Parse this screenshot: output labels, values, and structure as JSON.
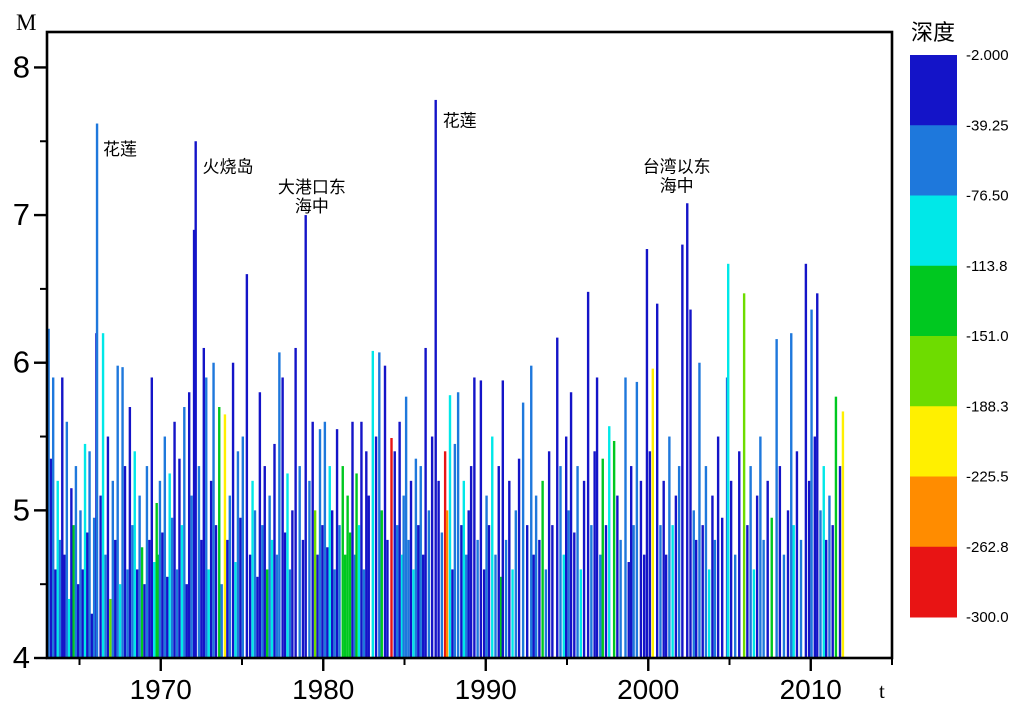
{
  "chart_data": {
    "type": "bar",
    "title": "",
    "xlabel": "t",
    "ylabel": "M",
    "xlim": [
      1963,
      2015
    ],
    "ylim": [
      4,
      8.24
    ],
    "x_major_ticks": [
      1970,
      1980,
      1990,
      2000,
      2010
    ],
    "x_minor_ticks": [
      1965,
      1975,
      1985,
      1995,
      2005,
      2015
    ],
    "y_major_ticks": [
      4,
      5,
      6,
      7,
      8
    ],
    "y_minor_ticks": [
      4.5,
      5.5,
      6.5,
      7.5
    ],
    "grid": false,
    "legend_position": "right",
    "depth_scale": {
      "title": "深度",
      "boundary_labels": [
        "-2.000",
        "-39.25",
        "-76.50",
        "-113.8",
        "-151.0",
        "-188.3",
        "-225.5",
        "-262.8",
        "-300.0"
      ],
      "band_colors": [
        "#1414C8",
        "#1E78DC",
        "#00E8E8",
        "#00C820",
        "#6EDC00",
        "#FFF000",
        "#FF8C00",
        "#E81414"
      ]
    },
    "annotations": [
      {
        "lines": [
          "花莲"
        ],
        "year": 1966.08,
        "mag": 7.51,
        "align": "left"
      },
      {
        "lines": [
          "火烧岛"
        ],
        "year": 1972.2,
        "mag": 7.39,
        "align": "left"
      },
      {
        "lines": [
          "大港口东",
          "海中"
        ],
        "year": 1979.3,
        "mag": 7.25,
        "align": "center"
      },
      {
        "lines": [
          "花莲"
        ],
        "year": 1986.98,
        "mag": 7.7,
        "align": "left"
      },
      {
        "lines": [
          "台湾以东",
          "海中"
        ],
        "year": 2001.75,
        "mag": 7.39,
        "align": "center"
      }
    ],
    "events_format": "[year, magnitude, depth_band_index(1=shallowest..8=deepest)]",
    "events": [
      [
        1963.1,
        6.23,
        2
      ],
      [
        1963.25,
        5.35,
        1
      ],
      [
        1963.38,
        5.9,
        2
      ],
      [
        1963.52,
        4.6,
        1
      ],
      [
        1963.66,
        5.2,
        3
      ],
      [
        1963.8,
        4.8,
        2
      ],
      [
        1963.94,
        5.9,
        1
      ],
      [
        1964.08,
        4.7,
        1
      ],
      [
        1964.22,
        5.6,
        2
      ],
      [
        1964.36,
        4.4,
        3
      ],
      [
        1964.5,
        5.15,
        1
      ],
      [
        1964.64,
        4.9,
        4
      ],
      [
        1964.78,
        5.3,
        2
      ],
      [
        1964.92,
        4.5,
        1
      ],
      [
        1965.06,
        5.0,
        2
      ],
      [
        1965.2,
        4.6,
        1
      ],
      [
        1965.34,
        5.45,
        3
      ],
      [
        1965.48,
        4.85,
        1
      ],
      [
        1965.62,
        5.4,
        2
      ],
      [
        1965.76,
        4.3,
        1
      ],
      [
        1965.9,
        4.95,
        2
      ],
      [
        1966.04,
        6.2,
        1
      ],
      [
        1966.08,
        7.62,
        2
      ],
      [
        1966.3,
        5.1,
        1
      ],
      [
        1966.45,
        6.2,
        3
      ],
      [
        1966.6,
        4.7,
        2
      ],
      [
        1966.75,
        5.5,
        1
      ],
      [
        1966.9,
        4.4,
        5
      ],
      [
        1967.05,
        5.2,
        2
      ],
      [
        1967.2,
        4.8,
        1
      ],
      [
        1967.35,
        5.98,
        2
      ],
      [
        1967.5,
        4.5,
        3
      ],
      [
        1967.65,
        5.97,
        2
      ],
      [
        1967.8,
        5.3,
        1
      ],
      [
        1967.95,
        4.6,
        2
      ],
      [
        1968.1,
        5.7,
        1
      ],
      [
        1968.25,
        4.9,
        2
      ],
      [
        1968.4,
        5.4,
        3
      ],
      [
        1968.55,
        4.6,
        1
      ],
      [
        1968.7,
        5.1,
        2
      ],
      [
        1968.85,
        4.75,
        4
      ],
      [
        1969.0,
        4.5,
        1
      ],
      [
        1969.15,
        5.3,
        2
      ],
      [
        1969.3,
        4.8,
        1
      ],
      [
        1969.45,
        5.9,
        1
      ],
      [
        1969.6,
        4.65,
        3
      ],
      [
        1969.75,
        5.05,
        4
      ],
      [
        1969.85,
        4.7,
        4
      ],
      [
        1969.95,
        5.2,
        2
      ],
      [
        1970.1,
        4.85,
        1
      ],
      [
        1970.25,
        5.5,
        2
      ],
      [
        1970.4,
        4.55,
        1
      ],
      [
        1970.55,
        5.25,
        3
      ],
      [
        1970.7,
        4.95,
        2
      ],
      [
        1970.85,
        5.6,
        1
      ],
      [
        1971.0,
        4.6,
        2
      ],
      [
        1971.15,
        5.35,
        1
      ],
      [
        1971.3,
        4.9,
        3
      ],
      [
        1971.45,
        5.7,
        2
      ],
      [
        1971.6,
        4.5,
        1
      ],
      [
        1971.75,
        5.8,
        1
      ],
      [
        1971.9,
        5.1,
        2
      ],
      [
        1972.05,
        6.9,
        1
      ],
      [
        1972.15,
        7.5,
        1
      ],
      [
        1972.35,
        5.3,
        2
      ],
      [
        1972.5,
        4.8,
        1
      ],
      [
        1972.65,
        6.1,
        1
      ],
      [
        1972.8,
        5.9,
        2
      ],
      [
        1972.95,
        4.6,
        3
      ],
      [
        1973.1,
        5.2,
        1
      ],
      [
        1973.25,
        6.0,
        2
      ],
      [
        1973.4,
        4.9,
        1
      ],
      [
        1973.6,
        5.7,
        4
      ],
      [
        1973.75,
        4.5,
        2
      ],
      [
        1973.95,
        5.65,
        6
      ],
      [
        1974.1,
        4.8,
        1
      ],
      [
        1974.25,
        5.1,
        2
      ],
      [
        1974.45,
        6.0,
        1
      ],
      [
        1974.6,
        4.65,
        3
      ],
      [
        1974.75,
        5.4,
        2
      ],
      [
        1974.9,
        4.95,
        1
      ],
      [
        1975.05,
        5.5,
        2
      ],
      [
        1975.3,
        6.6,
        1
      ],
      [
        1975.5,
        4.7,
        1
      ],
      [
        1975.65,
        5.2,
        3
      ],
      [
        1975.8,
        5.0,
        2
      ],
      [
        1975.95,
        4.55,
        1
      ],
      [
        1976.1,
        5.8,
        1
      ],
      [
        1976.25,
        4.9,
        2
      ],
      [
        1976.4,
        5.3,
        1
      ],
      [
        1976.55,
        4.6,
        4
      ],
      [
        1976.7,
        5.1,
        2
      ],
      [
        1976.85,
        4.8,
        3
      ],
      [
        1977.0,
        5.45,
        1
      ],
      [
        1977.15,
        4.7,
        2
      ],
      [
        1977.3,
        6.07,
        2
      ],
      [
        1977.5,
        5.9,
        1
      ],
      [
        1977.65,
        4.85,
        1
      ],
      [
        1977.8,
        5.25,
        3
      ],
      [
        1977.95,
        4.6,
        2
      ],
      [
        1978.1,
        5.0,
        1
      ],
      [
        1978.3,
        6.1,
        1
      ],
      [
        1978.55,
        5.3,
        2
      ],
      [
        1978.75,
        4.8,
        1
      ],
      [
        1978.92,
        7.0,
        1
      ],
      [
        1979.15,
        5.2,
        2
      ],
      [
        1979.35,
        5.6,
        1
      ],
      [
        1979.5,
        5.0,
        5
      ],
      [
        1979.65,
        4.7,
        1
      ],
      [
        1979.8,
        5.55,
        2
      ],
      [
        1979.95,
        4.9,
        1
      ],
      [
        1980.1,
        5.6,
        2
      ],
      [
        1980.25,
        4.75,
        1
      ],
      [
        1980.4,
        5.3,
        3
      ],
      [
        1980.55,
        5.0,
        1
      ],
      [
        1980.7,
        4.6,
        2
      ],
      [
        1980.85,
        5.55,
        1
      ],
      [
        1981.0,
        4.9,
        2
      ],
      [
        1981.2,
        5.3,
        4
      ],
      [
        1981.35,
        4.7,
        4
      ],
      [
        1981.5,
        5.1,
        4
      ],
      [
        1981.65,
        4.85,
        4
      ],
      [
        1981.8,
        5.6,
        1
      ],
      [
        1981.95,
        4.7,
        2
      ],
      [
        1982.05,
        5.25,
        4
      ],
      [
        1982.2,
        4.9,
        3
      ],
      [
        1982.35,
        5.6,
        1
      ],
      [
        1982.5,
        4.6,
        2
      ],
      [
        1982.65,
        5.4,
        1
      ],
      [
        1982.8,
        5.1,
        1
      ],
      [
        1983.05,
        6.08,
        3
      ],
      [
        1983.25,
        5.5,
        1
      ],
      [
        1983.45,
        6.07,
        2
      ],
      [
        1983.6,
        5.0,
        4
      ],
      [
        1983.8,
        5.98,
        1
      ],
      [
        1983.95,
        4.8,
        1
      ],
      [
        1984.2,
        5.49,
        8
      ],
      [
        1984.4,
        5.4,
        1
      ],
      [
        1984.55,
        4.9,
        2
      ],
      [
        1984.7,
        5.6,
        1
      ],
      [
        1984.85,
        4.7,
        3
      ],
      [
        1984.95,
        5.1,
        2
      ],
      [
        1985.1,
        5.77,
        2
      ],
      [
        1985.25,
        4.8,
        2
      ],
      [
        1985.4,
        5.2,
        1
      ],
      [
        1985.55,
        4.6,
        3
      ],
      [
        1985.7,
        5.35,
        2
      ],
      [
        1985.85,
        4.9,
        1
      ],
      [
        1986.0,
        5.3,
        2
      ],
      [
        1986.15,
        4.7,
        1
      ],
      [
        1986.3,
        6.1,
        1
      ],
      [
        1986.5,
        5.0,
        2
      ],
      [
        1986.7,
        5.5,
        1
      ],
      [
        1986.92,
        7.78,
        1
      ],
      [
        1987.1,
        5.2,
        1
      ],
      [
        1987.3,
        4.85,
        2
      ],
      [
        1987.5,
        5.4,
        8
      ],
      [
        1987.62,
        5.0,
        7
      ],
      [
        1987.8,
        5.78,
        3
      ],
      [
        1987.95,
        4.6,
        1
      ],
      [
        1988.1,
        5.45,
        2
      ],
      [
        1988.3,
        5.8,
        2
      ],
      [
        1988.5,
        4.9,
        1
      ],
      [
        1988.65,
        5.2,
        3
      ],
      [
        1988.8,
        4.7,
        2
      ],
      [
        1988.95,
        5.0,
        1
      ],
      [
        1989.1,
        5.3,
        1
      ],
      [
        1989.3,
        5.9,
        1
      ],
      [
        1989.5,
        4.8,
        2
      ],
      [
        1989.7,
        5.88,
        1
      ],
      [
        1989.9,
        4.6,
        1
      ],
      [
        1990.05,
        5.1,
        2
      ],
      [
        1990.2,
        4.9,
        1
      ],
      [
        1990.4,
        5.5,
        3
      ],
      [
        1990.6,
        4.7,
        2
      ],
      [
        1990.8,
        5.3,
        1
      ],
      [
        1990.95,
        4.55,
        4
      ],
      [
        1991.05,
        5.88,
        1
      ],
      [
        1991.25,
        4.8,
        2
      ],
      [
        1991.45,
        5.2,
        1
      ],
      [
        1991.65,
        4.6,
        3
      ],
      [
        1991.85,
        5.0,
        2
      ],
      [
        1992.05,
        5.35,
        1
      ],
      [
        1992.3,
        5.73,
        2
      ],
      [
        1992.55,
        4.9,
        1
      ],
      [
        1992.8,
        5.98,
        2
      ],
      [
        1992.95,
        4.7,
        1
      ],
      [
        1993.1,
        5.1,
        2
      ],
      [
        1993.3,
        4.8,
        1
      ],
      [
        1993.5,
        5.2,
        4
      ],
      [
        1993.7,
        4.6,
        2
      ],
      [
        1993.9,
        5.4,
        1
      ],
      [
        1994.1,
        4.9,
        1
      ],
      [
        1994.4,
        6.17,
        1
      ],
      [
        1994.6,
        5.3,
        2
      ],
      [
        1994.8,
        4.7,
        3
      ],
      [
        1994.95,
        5.5,
        1
      ],
      [
        1995.1,
        5.0,
        2
      ],
      [
        1995.25,
        5.8,
        1
      ],
      [
        1995.45,
        4.85,
        1
      ],
      [
        1995.65,
        5.3,
        2
      ],
      [
        1995.85,
        4.6,
        3
      ],
      [
        1996.05,
        5.2,
        1
      ],
      [
        1996.3,
        6.48,
        1
      ],
      [
        1996.5,
        4.9,
        2
      ],
      [
        1996.7,
        5.4,
        1
      ],
      [
        1996.85,
        5.9,
        1
      ],
      [
        1997.05,
        4.7,
        2
      ],
      [
        1997.2,
        5.35,
        4
      ],
      [
        1997.4,
        4.9,
        1
      ],
      [
        1997.6,
        5.57,
        3
      ],
      [
        1997.9,
        5.47,
        4
      ],
      [
        1998.1,
        5.1,
        1
      ],
      [
        1998.3,
        4.8,
        2
      ],
      [
        1998.6,
        5.9,
        2
      ],
      [
        1998.8,
        4.65,
        1
      ],
      [
        1998.95,
        5.3,
        1
      ],
      [
        1999.1,
        4.9,
        2
      ],
      [
        1999.3,
        5.87,
        2
      ],
      [
        1999.55,
        5.2,
        1
      ],
      [
        1999.75,
        4.7,
        1
      ],
      [
        1999.92,
        6.77,
        1
      ],
      [
        2000.1,
        5.4,
        1
      ],
      [
        2000.28,
        5.96,
        6
      ],
      [
        2000.55,
        6.4,
        1
      ],
      [
        2000.75,
        4.9,
        2
      ],
      [
        2000.95,
        5.2,
        1
      ],
      [
        2001.1,
        4.7,
        1
      ],
      [
        2001.3,
        5.5,
        2
      ],
      [
        2001.5,
        4.9,
        3
      ],
      [
        2001.7,
        5.1,
        1
      ],
      [
        2001.9,
        5.3,
        2
      ],
      [
        2002.1,
        6.8,
        1
      ],
      [
        2002.4,
        7.08,
        1
      ],
      [
        2002.6,
        6.36,
        1
      ],
      [
        2002.8,
        5.0,
        2
      ],
      [
        2002.95,
        4.8,
        1
      ],
      [
        2003.15,
        6.0,
        2
      ],
      [
        2003.35,
        4.9,
        1
      ],
      [
        2003.55,
        5.3,
        2
      ],
      [
        2003.75,
        4.6,
        3
      ],
      [
        2003.95,
        5.1,
        1
      ],
      [
        2004.1,
        4.8,
        2
      ],
      [
        2004.3,
        5.5,
        1
      ],
      [
        2004.55,
        4.95,
        1
      ],
      [
        2004.85,
        5.9,
        2
      ],
      [
        2004.92,
        6.67,
        3
      ],
      [
        2005.1,
        5.2,
        1
      ],
      [
        2005.35,
        4.7,
        2
      ],
      [
        2005.6,
        5.4,
        1
      ],
      [
        2005.9,
        6.47,
        5
      ],
      [
        2006.1,
        4.9,
        1
      ],
      [
        2006.3,
        5.3,
        2
      ],
      [
        2006.5,
        4.6,
        3
      ],
      [
        2006.7,
        5.1,
        1
      ],
      [
        2006.9,
        5.5,
        2
      ],
      [
        2007.1,
        4.8,
        2
      ],
      [
        2007.35,
        5.2,
        1
      ],
      [
        2007.6,
        4.95,
        4
      ],
      [
        2007.9,
        6.16,
        2
      ],
      [
        2008.1,
        5.3,
        1
      ],
      [
        2008.35,
        4.7,
        2
      ],
      [
        2008.6,
        5.0,
        1
      ],
      [
        2008.8,
        6.2,
        2
      ],
      [
        2008.95,
        4.9,
        3
      ],
      [
        2009.15,
        5.4,
        1
      ],
      [
        2009.4,
        4.8,
        2
      ],
      [
        2009.7,
        6.67,
        1
      ],
      [
        2009.9,
        5.2,
        1
      ],
      [
        2010.05,
        6.36,
        2
      ],
      [
        2010.25,
        5.5,
        1
      ],
      [
        2010.4,
        6.47,
        1
      ],
      [
        2010.6,
        5.0,
        2
      ],
      [
        2010.8,
        5.3,
        3
      ],
      [
        2010.95,
        4.8,
        1
      ],
      [
        2011.15,
        5.1,
        2
      ],
      [
        2011.35,
        4.9,
        1
      ],
      [
        2011.55,
        5.77,
        4
      ],
      [
        2011.8,
        5.3,
        1
      ],
      [
        2011.98,
        5.67,
        6
      ]
    ]
  }
}
